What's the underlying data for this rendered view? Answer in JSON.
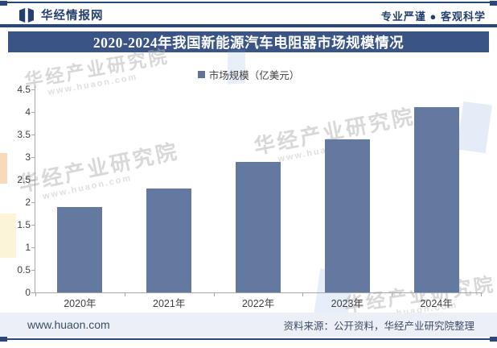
{
  "header": {
    "brand": "华经情报网",
    "slogan": "专业严谨 ● 客观科学"
  },
  "title": "2020-2024年我国新能源汽车电阻器市场规模情况",
  "legend": {
    "label": "市场规模（亿美元）"
  },
  "chart_data": {
    "type": "bar",
    "title": "2020-2024年我国新能源汽车电阻器市场规模情况",
    "categories": [
      "2020年",
      "2021年",
      "2022年",
      "2023年",
      "2024年"
    ],
    "series": [
      {
        "name": "市场规模（亿美元）",
        "values": [
          1.9,
          2.3,
          2.9,
          3.4,
          4.1
        ]
      }
    ],
    "xlabel": "",
    "ylabel": "",
    "ylim": [
      0,
      4.5
    ],
    "ytick_step": 0.5,
    "ytick_labels": [
      "0",
      "0.5",
      "1",
      "1.5",
      "2",
      "2.5",
      "3",
      "3.5",
      "4",
      "4.5"
    ],
    "grid": false,
    "legend_position": "top"
  },
  "footer": {
    "site": "www.huaon.com",
    "source": "资料来源：公开资料，华经产业研究院整理"
  },
  "watermark": {
    "text": "华经产业研究院",
    "url": "www.huaon.com"
  },
  "colors": {
    "bar": "#64799F",
    "banner": "#3A5585",
    "navy": "#2B4778",
    "legend_square": "#5E7396",
    "axis": "#A6A6A6"
  }
}
